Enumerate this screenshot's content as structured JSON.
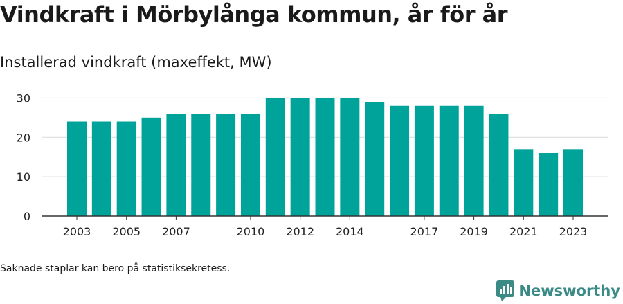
{
  "title": "Vindkraft i Mörbylånga kommun, år för år",
  "subtitle": "Installerad vindkraft (maxeffekt, MW)",
  "footnote": "Saknade staplar kan bero på statistiksekretess.",
  "brand": {
    "name": "Newsworthy",
    "color": "#3a8a86"
  },
  "colors": {
    "bar": "#00a39a",
    "grid": "#d9d9d9",
    "axis": "#333333"
  },
  "chart_data": {
    "type": "bar",
    "categories": [
      "2003",
      "2004",
      "2005",
      "2006",
      "2007",
      "2008",
      "2009",
      "2010",
      "2011",
      "2012",
      "2013",
      "2014",
      "2015",
      "2016",
      "2017",
      "2018",
      "2019",
      "2020",
      "2021",
      "2022",
      "2023"
    ],
    "values": [
      24,
      24,
      24,
      25,
      26,
      26,
      26,
      26,
      30,
      30,
      30,
      30,
      29,
      28,
      28,
      28,
      28,
      26,
      17,
      16,
      17
    ],
    "xtick_labels": [
      "2003",
      "",
      "2005",
      "",
      "2007",
      "",
      "",
      "2010",
      "",
      "2012",
      "",
      "2014",
      "",
      "",
      "2017",
      "",
      "2019",
      "",
      "2021",
      "",
      "2023"
    ],
    "yticks": [
      0,
      10,
      20,
      30
    ],
    "ylim": [
      0,
      32
    ],
    "grid": true,
    "title": "Vindkraft i Mörbylånga kommun, år för år",
    "ylabel": "Installerad vindkraft (maxeffekt, MW)",
    "xlabel": ""
  }
}
